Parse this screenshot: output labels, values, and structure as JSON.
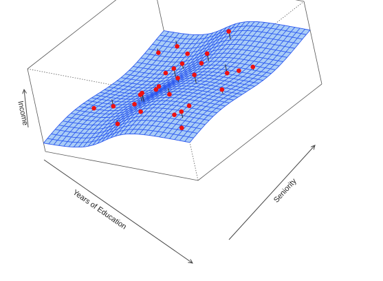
{
  "chart_data": {
    "type": "surface3d",
    "x_label": "Years of Education",
    "y_label": "Seniority",
    "z_label": "Income",
    "axis_ticks_shown": false,
    "surface": "smooth fitted surface shown as a wireframe mesh",
    "observations": "red points, each joined to the surface by a short vertical segment",
    "colors": {
      "surface_fill": "#a9ccf6",
      "surface_mesh": "#2a57ef",
      "point": "#ee1111",
      "box": "#555555",
      "residual": "#333333"
    }
  }
}
